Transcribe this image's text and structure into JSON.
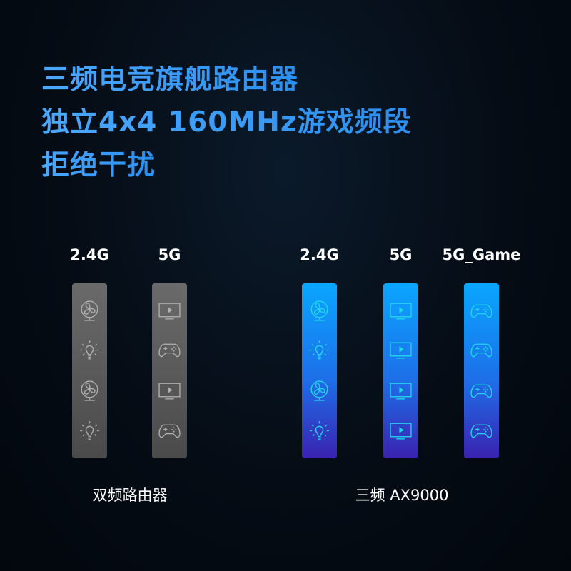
{
  "headline": [
    "三频电竞旗舰路由器",
    "独立4x4 160MHz游戏频段",
    "拒绝干扰"
  ],
  "comparison": {
    "dual_band": {
      "caption": "双频路由器",
      "bands": [
        {
          "label": "2.4G",
          "icons": [
            "fan-icon",
            "bulb-icon",
            "fan-icon",
            "bulb-icon"
          ]
        },
        {
          "label": "5G",
          "icons": [
            "tv-icon",
            "gamepad-icon",
            "tv-icon",
            "gamepad-icon"
          ]
        }
      ]
    },
    "tri_band": {
      "caption": "三频 AX9000",
      "bands": [
        {
          "label": "2.4G",
          "icons": [
            "fan-icon",
            "bulb-icon",
            "fan-icon",
            "bulb-icon"
          ]
        },
        {
          "label": "5G",
          "icons": [
            "tv-icon",
            "tv-icon",
            "tv-icon",
            "tv-icon"
          ]
        },
        {
          "label": "5G_Game",
          "icons": [
            "gamepad-icon",
            "gamepad-icon",
            "gamepad-icon",
            "gamepad-icon"
          ]
        }
      ]
    }
  },
  "colors": {
    "headline": "#3aa2ff",
    "dual_bar": "#5a5a5a",
    "tri_bar_top": "#0aa6ff",
    "tri_bar_bottom": "#3a22b0",
    "tri_icon": "#22d6ee"
  }
}
